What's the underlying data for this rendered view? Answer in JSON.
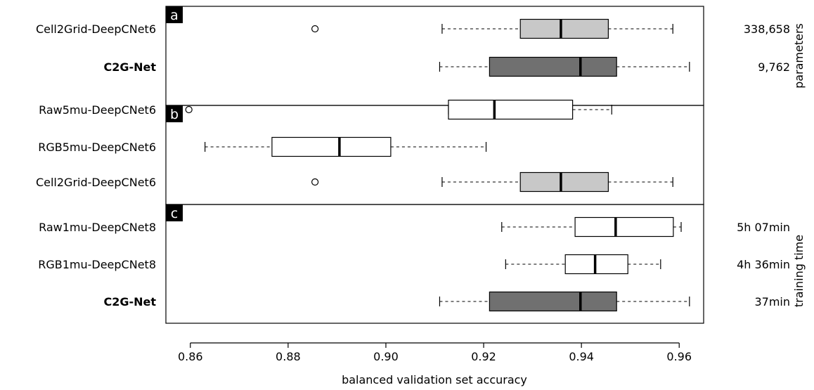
{
  "chart_data": {
    "type": "boxplot",
    "orientation": "horizontal",
    "xlabel": "balanced validation set accuracy",
    "xlim": [
      0.855,
      0.965
    ],
    "xticks": [
      {
        "value": 0.86,
        "label": "0.86"
      },
      {
        "value": 0.88,
        "label": "0.88"
      },
      {
        "value": 0.9,
        "label": "0.90"
      },
      {
        "value": 0.92,
        "label": "0.92"
      },
      {
        "value": 0.94,
        "label": "0.94"
      },
      {
        "value": 0.96,
        "label": "0.96"
      }
    ],
    "colors": {
      "light_gray": "#c8c8c8",
      "dark_gray": "#707070",
      "white": "#ffffff",
      "black": "#000000"
    },
    "panels": [
      {
        "letter": "a",
        "side_axis_label": "parameters",
        "rows": [
          {
            "label": "Cell2Grid-DeepCNet6",
            "bold": false,
            "fill": "light_gray",
            "whisker_low": 0.9115,
            "q1": 0.9275,
            "median": 0.9358,
            "q3": 0.9455,
            "whisker_high": 0.9587,
            "outliers": [
              0.8855
            ],
            "side_text": "338,658"
          },
          {
            "label": "C2G-Net",
            "bold": true,
            "fill": "dark_gray",
            "whisker_low": 0.911,
            "q1": 0.9212,
            "median": 0.9398,
            "q3": 0.9472,
            "whisker_high": 0.9621,
            "outliers": [],
            "side_text": "9,762"
          }
        ]
      },
      {
        "letter": "b",
        "side_axis_label": "",
        "rows": [
          {
            "label": "Raw5mu-DeepCNet6",
            "bold": false,
            "fill": "white",
            "whisker_low": 0.9128,
            "q1": 0.9128,
            "median": 0.9222,
            "q3": 0.9382,
            "whisker_high": 0.9462,
            "outliers": [
              0.8597
            ],
            "side_text": ""
          },
          {
            "label": "RGB5mu-DeepCNet6",
            "bold": false,
            "fill": "white",
            "whisker_low": 0.863,
            "q1": 0.8767,
            "median": 0.8905,
            "q3": 0.901,
            "whisker_high": 0.9205,
            "outliers": [],
            "side_text": ""
          },
          {
            "label": "Cell2Grid-DeepCNet6",
            "bold": false,
            "fill": "light_gray",
            "whisker_low": 0.9115,
            "q1": 0.9275,
            "median": 0.9358,
            "q3": 0.9455,
            "whisker_high": 0.9587,
            "outliers": [
              0.8855
            ],
            "side_text": ""
          }
        ]
      },
      {
        "letter": "c",
        "side_axis_label": "training time",
        "rows": [
          {
            "label": "Raw1mu-DeepCNet8",
            "bold": false,
            "fill": "white",
            "whisker_low": 0.9237,
            "q1": 0.9387,
            "median": 0.947,
            "q3": 0.9588,
            "whisker_high": 0.9604,
            "outliers": [],
            "side_text": "5h 07min"
          },
          {
            "label": "RGB1mu-DeepCNet8",
            "bold": false,
            "fill": "white",
            "whisker_low": 0.9245,
            "q1": 0.9367,
            "median": 0.9428,
            "q3": 0.9495,
            "whisker_high": 0.9562,
            "outliers": [],
            "side_text": "4h 36min"
          },
          {
            "label": "C2G-Net",
            "bold": true,
            "fill": "dark_gray",
            "whisker_low": 0.911,
            "q1": 0.9212,
            "median": 0.9398,
            "q3": 0.9472,
            "whisker_high": 0.9621,
            "outliers": [],
            "side_text": "37min"
          }
        ]
      }
    ]
  }
}
